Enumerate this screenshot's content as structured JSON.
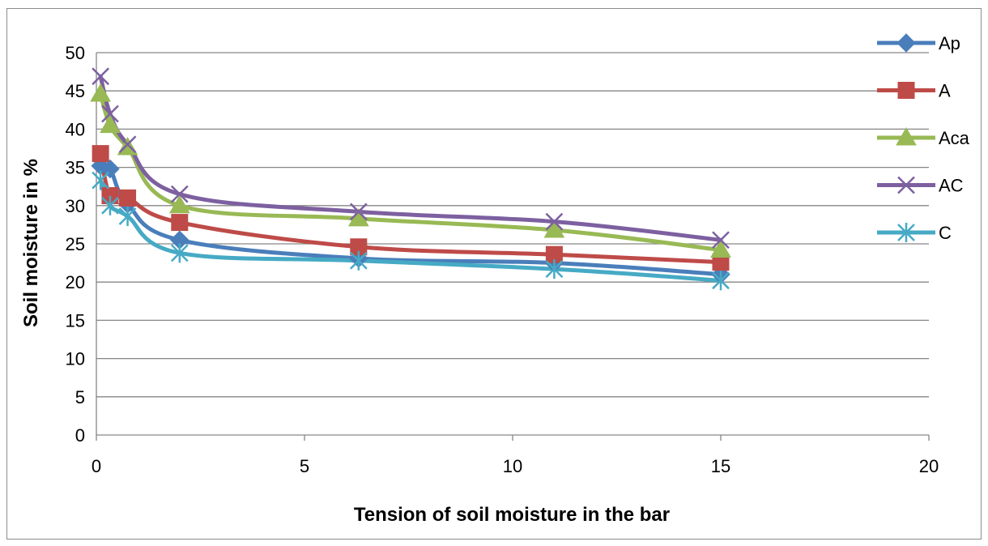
{
  "chart_data": {
    "type": "line",
    "title": "",
    "xlabel": "Tension of soil moisture in the bar",
    "ylabel": "Soil moisture in %",
    "xlim": [
      0,
      20
    ],
    "ylim": [
      0,
      50
    ],
    "xticks": [
      "0",
      "5",
      "10",
      "15",
      "20"
    ],
    "yticks": [
      "0",
      "5",
      "10",
      "15",
      "20",
      "25",
      "30",
      "35",
      "40",
      "45",
      "50"
    ],
    "grid": "horizontal",
    "legend_position": "right",
    "smooth": true,
    "series": [
      {
        "name": "Ap",
        "color": "#4a7ebb",
        "marker": "diamond",
        "x": [
          0.1,
          0.33,
          0.75,
          2,
          6.3,
          11,
          15
        ],
        "y": [
          35.2,
          34.8,
          30.2,
          25.5,
          23.1,
          22.5,
          21.0
        ]
      },
      {
        "name": "A",
        "color": "#be4b48",
        "marker": "square",
        "x": [
          0.1,
          0.33,
          0.75,
          2,
          6.3,
          11,
          15
        ],
        "y": [
          36.8,
          31.3,
          31.0,
          27.8,
          24.6,
          23.6,
          22.6
        ]
      },
      {
        "name": "Aca",
        "color": "#98b954",
        "marker": "triangle",
        "x": [
          0.1,
          0.33,
          0.75,
          2,
          6.3,
          11,
          15
        ],
        "y": [
          44.6,
          40.5,
          37.6,
          30.0,
          28.3,
          26.8,
          24.2
        ]
      },
      {
        "name": "AC",
        "color": "#7d60a0",
        "marker": "x",
        "x": [
          0.1,
          0.33,
          0.75,
          2,
          6.3,
          11,
          15
        ],
        "y": [
          46.9,
          42.0,
          38.0,
          31.5,
          29.2,
          27.9,
          25.5
        ]
      },
      {
        "name": "C",
        "color": "#46aac5",
        "marker": "asterisk",
        "x": [
          0.1,
          0.33,
          0.75,
          2,
          6.3,
          11,
          15
        ],
        "y": [
          33.3,
          30.0,
          28.6,
          23.8,
          22.8,
          21.7,
          20.2
        ]
      }
    ]
  }
}
